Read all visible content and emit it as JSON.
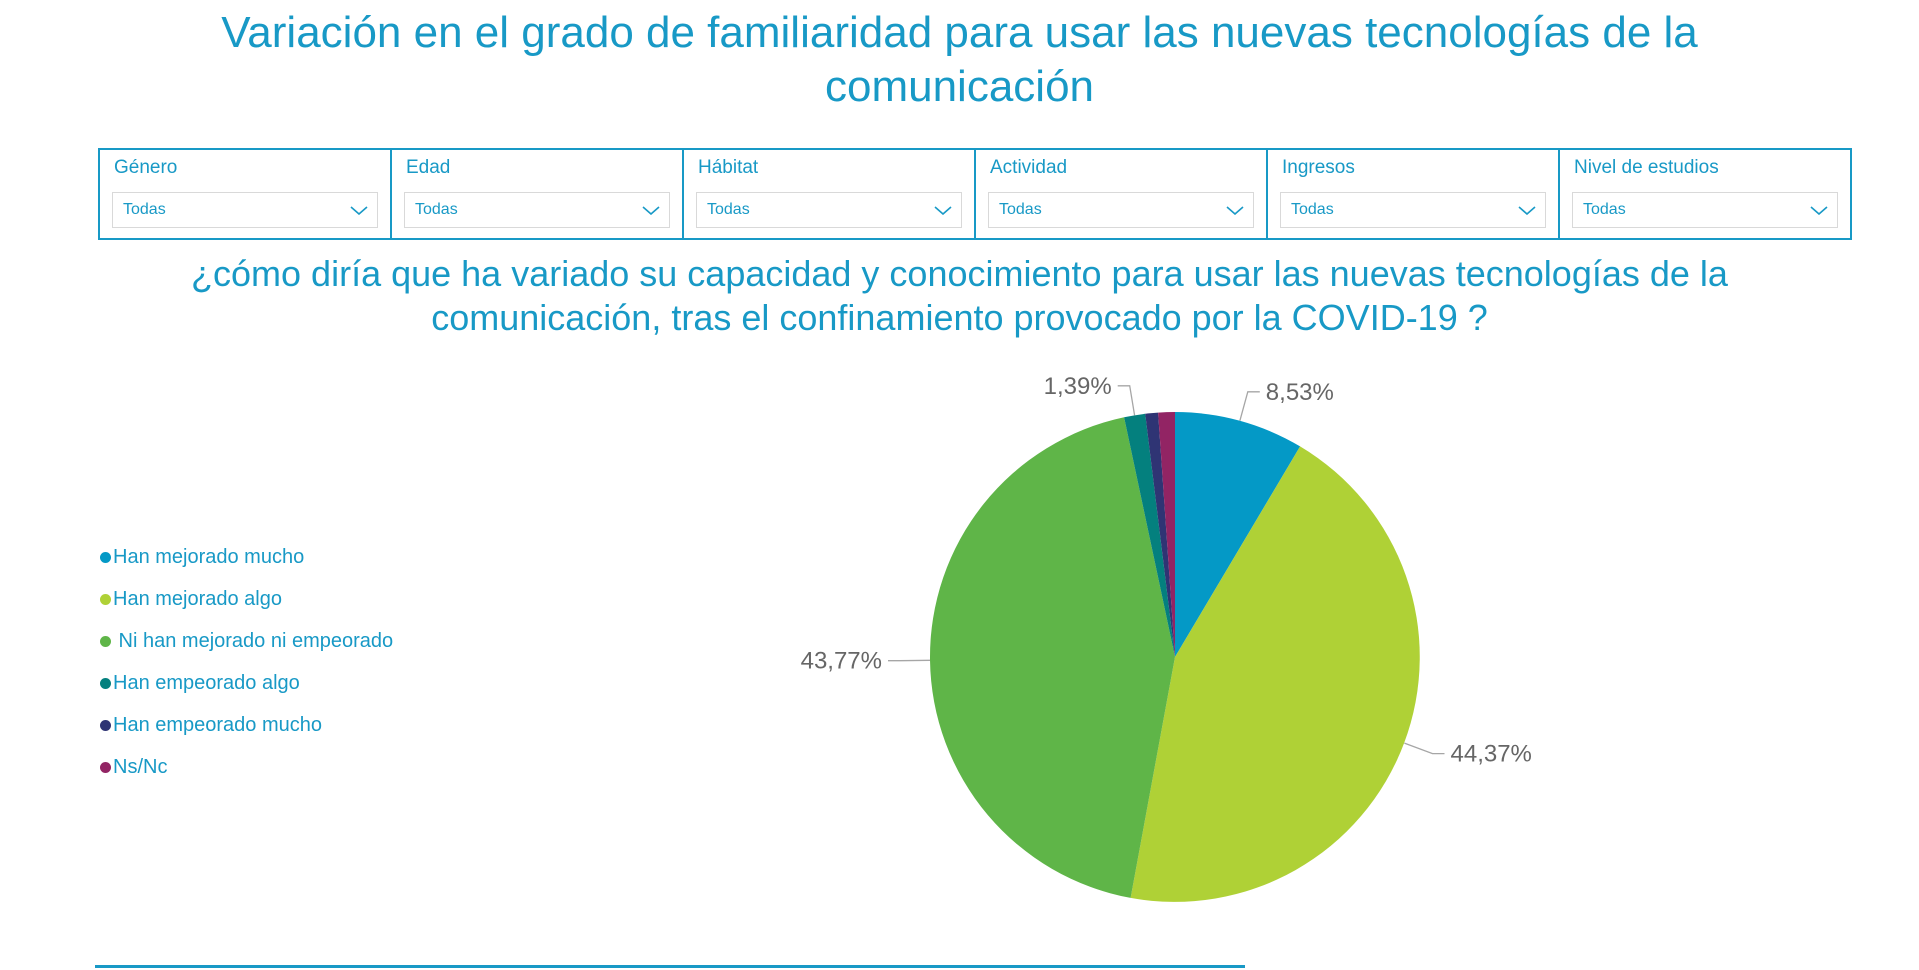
{
  "page": {
    "title": "Variación en el grado de familiaridad para usar las nuevas tecnologías de la comunicación",
    "question": "¿cómo diría que ha variado su capacidad y conocimiento para usar las nuevas tecnologías de la comunicación, tras el confinamiento provocado por la COVID-19 ?"
  },
  "colors": {
    "teal_text": "#1899C6",
    "filter_border": "#1899C6",
    "dropdown_border": "#D9D9D9",
    "data_label_gray": "#666666",
    "leader_line_gray": "#A6A6A6"
  },
  "icons": {
    "dropdown_chevron": "chevron-down"
  },
  "filters": [
    {
      "label": "Género",
      "value": "Todas"
    },
    {
      "label": "Edad",
      "value": "Todas"
    },
    {
      "label": "Hábitat",
      "value": "Todas"
    },
    {
      "label": "Actividad",
      "value": "Todas"
    },
    {
      "label": "Ingresos",
      "value": "Todas"
    },
    {
      "label": "Nivel de estudios",
      "value": "Todas"
    }
  ],
  "chart_data": {
    "type": "pie",
    "title": "¿cómo diría que ha variado su capacidad y conocimiento para usar las nuevas tecnologías de la comunicación, tras el confinamiento provocado por la COVID-19 ?",
    "legend_position": "left",
    "value_format": "percent with comma decimal separator",
    "start_angle_deg": 0,
    "direction": "clockwise",
    "slices": [
      {
        "label": "Han mejorado mucho",
        "value": 8.53,
        "display_label": "8,53%",
        "color": "#0499C6",
        "labeled": true
      },
      {
        "label": "Han mejorado algo",
        "value": 44.37,
        "display_label": "44,37%",
        "color": "#AFD136",
        "labeled": true
      },
      {
        "label": " Ni han mejorado ni empeorado",
        "value": 43.77,
        "display_label": "43,77%",
        "color": "#5FB548",
        "labeled": true
      },
      {
        "label": "Han empeorado algo",
        "value": 1.39,
        "display_label": "1,39%",
        "color": "#04807E",
        "labeled": true
      },
      {
        "label": "Han empeorado mucho",
        "value": 0.84,
        "display_label": "",
        "color": "#2F3474",
        "labeled": false,
        "value_estimated": true
      },
      {
        "label": "Ns/Nc",
        "value": 1.1,
        "display_label": "",
        "color": "#922464",
        "labeled": false,
        "value_estimated": true
      }
    ]
  }
}
